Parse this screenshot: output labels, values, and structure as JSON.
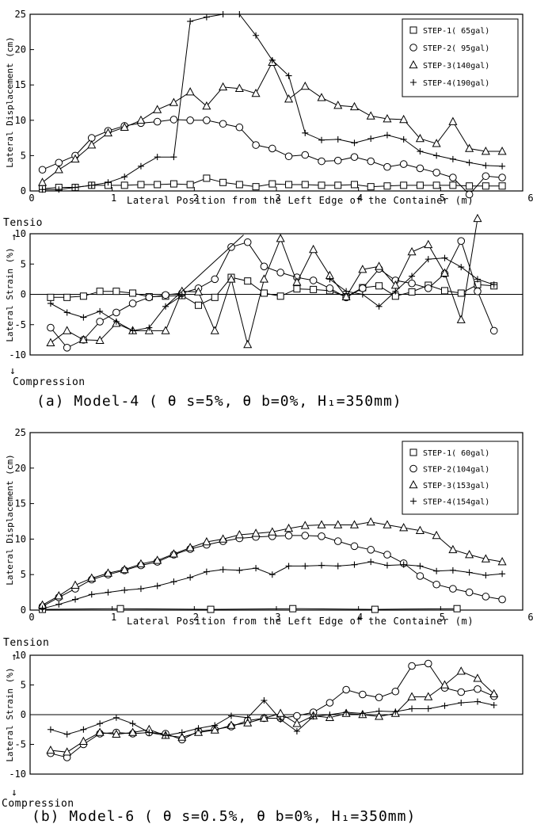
{
  "figure": {
    "caption_a": "(a) Model-4 ( θ s=5%, θ b=0%, H₁=350mm)",
    "caption_b": "(b) Model-6 ( θ s=0.5%, θ b=0%, H₁=350mm)",
    "tension_label_a": "Tensio",
    "compression_label_a": "Compression",
    "tension_label_b": "Tension",
    "compression_label_b": "Compression"
  },
  "chart_data": [
    {
      "id": "a-displacement",
      "type": "line",
      "xlabel": "Lateral Position from the Left Edge of the Container (m)",
      "ylabel": "Lateral Displacement (cm)",
      "xlim": [
        0,
        6
      ],
      "ylim": [
        0,
        25
      ],
      "xticks": [
        0,
        1,
        2,
        3,
        4,
        5,
        6
      ],
      "yticks": [
        0,
        5,
        10,
        15,
        20,
        25
      ],
      "legend_position": "top-right",
      "series": [
        {
          "name": "STEP-1( 65gal)",
          "marker": "square",
          "x": [
            0.15,
            0.35,
            0.55,
            0.75,
            0.95,
            1.15,
            1.35,
            1.55,
            1.75,
            1.95,
            2.15,
            2.35,
            2.55,
            2.75,
            2.95,
            3.15,
            3.35,
            3.55,
            3.75,
            3.95,
            4.15,
            4.35,
            4.55,
            4.75,
            4.95,
            5.15,
            5.35,
            5.55,
            5.75
          ],
          "y": [
            0.3,
            0.5,
            0.5,
            0.8,
            0.8,
            0.8,
            0.9,
            0.9,
            1.0,
            0.9,
            1.8,
            1.2,
            0.9,
            0.6,
            1.0,
            0.9,
            0.9,
            0.8,
            0.8,
            0.9,
            0.6,
            0.7,
            0.8,
            0.8,
            0.8,
            0.8,
            0.7,
            0.7,
            0.7
          ]
        },
        {
          "name": "STEP-2( 95gal)",
          "marker": "circle",
          "x": [
            0.15,
            0.35,
            0.55,
            0.75,
            0.95,
            1.15,
            1.35,
            1.55,
            1.75,
            1.95,
            2.15,
            2.35,
            2.55,
            2.75,
            2.95,
            3.15,
            3.35,
            3.55,
            3.75,
            3.95,
            4.15,
            4.35,
            4.55,
            4.75,
            4.95,
            5.15,
            5.35,
            5.55,
            5.75
          ],
          "y": [
            3.0,
            4.0,
            5.0,
            7.5,
            8.5,
            9.2,
            9.6,
            9.8,
            10.1,
            10.0,
            10.0,
            9.5,
            9.0,
            6.5,
            6.0,
            4.9,
            5.1,
            4.2,
            4.3,
            4.8,
            4.2,
            3.4,
            3.8,
            3.2,
            2.6,
            1.9,
            -0.5,
            2.1,
            1.9
          ]
        },
        {
          "name": "STEP-3(140gal)",
          "marker": "triangle",
          "x": [
            0.15,
            0.35,
            0.55,
            0.75,
            0.95,
            1.15,
            1.35,
            1.55,
            1.75,
            1.95,
            2.15,
            2.35,
            2.55,
            2.75,
            2.95,
            3.15,
            3.35,
            3.55,
            3.75,
            3.95,
            4.15,
            4.35,
            4.55,
            4.75,
            4.95,
            5.15,
            5.35,
            5.55,
            5.75
          ],
          "y": [
            1.2,
            3.0,
            4.5,
            6.5,
            8.2,
            9.0,
            10.0,
            11.5,
            12.5,
            14.0,
            12.0,
            14.7,
            14.5,
            13.8,
            18.2,
            13.0,
            14.8,
            13.2,
            12.1,
            11.9,
            10.6,
            10.2,
            10.1,
            7.4,
            6.7,
            9.8,
            6.0,
            5.6,
            5.6
          ]
        },
        {
          "name": "STEP-4(190gal)",
          "marker": "plus",
          "x": [
            0.15,
            0.35,
            0.55,
            0.75,
            0.95,
            1.15,
            1.35,
            1.55,
            1.75,
            1.95,
            2.15,
            2.35,
            2.55,
            2.75,
            2.95,
            3.15,
            3.35,
            3.55,
            3.75,
            3.95,
            4.15,
            4.35,
            4.55,
            4.75,
            4.95,
            5.15,
            5.35,
            5.55,
            5.75
          ],
          "y": [
            0.2,
            0.2,
            0.5,
            0.8,
            1.2,
            2.0,
            3.5,
            4.8,
            4.8,
            24.0,
            24.6,
            25.0,
            25.0,
            22.0,
            18.5,
            16.3,
            8.2,
            7.2,
            7.3,
            6.8,
            7.4,
            7.9,
            7.3,
            5.6,
            5.0,
            4.5,
            4.0,
            3.6,
            3.5
          ]
        }
      ]
    },
    {
      "id": "a-strain",
      "type": "line",
      "ylabel": "Lateral Strain (%)",
      "xlim": [
        0,
        6
      ],
      "ylim": [
        -10,
        10
      ],
      "yticks": [
        -10,
        -5,
        0,
        5,
        10
      ],
      "series": [
        {
          "name": "STEP-1( 65gal)",
          "marker": "square",
          "x": [
            0.25,
            0.45,
            0.65,
            0.85,
            1.05,
            1.25,
            1.45,
            1.65,
            1.85,
            2.05,
            2.25,
            2.45,
            2.65,
            2.85,
            3.05,
            3.25,
            3.45,
            3.65,
            3.85,
            4.05,
            4.25,
            4.45,
            4.65,
            4.85,
            5.05,
            5.25,
            5.45,
            5.65
          ],
          "y": [
            -0.5,
            -0.5,
            -0.3,
            0.5,
            0.5,
            0.2,
            -0.4,
            -0.3,
            -0.2,
            -1.8,
            -0.5,
            2.8,
            2.2,
            0.2,
            -0.3,
            0.9,
            0.8,
            0.6,
            -0.4,
            1.1,
            1.4,
            -0.3,
            0.4,
            1.5,
            0.6,
            0.2,
            1.6,
            1.4
          ]
        },
        {
          "name": "STEP-2( 95gal)",
          "marker": "circle",
          "x": [
            0.25,
            0.45,
            0.65,
            0.85,
            1.05,
            1.25,
            1.45,
            1.65,
            1.85,
            2.05,
            2.25,
            2.45,
            2.65,
            2.85,
            3.05,
            3.25,
            3.45,
            3.65,
            3.85,
            4.05,
            4.25,
            4.45,
            4.65,
            4.85,
            5.05,
            5.25,
            5.45,
            5.65
          ],
          "y": [
            -5.5,
            -8.8,
            -7.5,
            -4.5,
            -3.0,
            -1.5,
            -0.5,
            -0.1,
            0.2,
            1.0,
            2.5,
            7.8,
            8.6,
            4.6,
            3.6,
            2.8,
            2.3,
            1.0,
            -0.5,
            1.0,
            4.2,
            2.3,
            1.8,
            1.0,
            3.4,
            8.8,
            0.5,
            -6.0
          ]
        },
        {
          "name": "STEP-3(140gal)",
          "marker": "triangle",
          "x": [
            0.25,
            0.45,
            0.65,
            0.85,
            1.05,
            1.25,
            1.45,
            1.65,
            1.85,
            2.05,
            2.25,
            2.45,
            2.65,
            2.85,
            3.05,
            3.25,
            3.45,
            3.65,
            3.85,
            4.05,
            4.25,
            4.45,
            4.65,
            4.85,
            5.05,
            5.25,
            5.45,
            5.65
          ],
          "y": [
            -8.0,
            -6.0,
            -7.5,
            -7.6,
            -4.8,
            -6.0,
            -6.0,
            -6.0,
            0.5,
            0.4,
            -6.0,
            2.5,
            -8.3,
            2.5,
            9.2,
            2.0,
            7.4,
            3.1,
            -0.4,
            4.1,
            4.6,
            1.5,
            7.0,
            8.2,
            3.5,
            -4.2,
            12.5,
            null
          ]
        },
        {
          "name": "STEP-4(190gal)",
          "marker": "plus",
          "x": [
            0.25,
            0.45,
            0.65,
            0.85,
            1.05,
            1.25,
            1.45,
            1.65,
            1.85,
            2.05,
            2.25,
            2.45,
            2.65,
            2.85,
            3.05,
            3.25,
            3.45,
            3.65,
            3.85,
            4.05,
            4.25,
            4.45,
            4.65,
            4.85,
            5.05,
            5.25,
            5.45,
            5.65
          ],
          "y": [
            -1.5,
            -3.0,
            -3.8,
            -2.8,
            -4.5,
            -6.0,
            -5.5,
            -2.0,
            -0.2,
            null,
            null,
            null,
            null,
            null,
            null,
            null,
            null,
            2.5,
            0.5,
            0.0,
            -2.0,
            0.5,
            3.0,
            5.8,
            6.0,
            4.5,
            2.5,
            1.6
          ],
          "segments": [
            {
              "from": [
                1.65,
                -2.0
              ],
              "to": [
                2.6,
                9.8
              ]
            }
          ]
        }
      ]
    },
    {
      "id": "b-displacement",
      "type": "line",
      "xlabel": "Lateral Position from the Left Edge of the Container (m)",
      "ylabel": "Lateral Displacement (cm)",
      "xlim": [
        0,
        6
      ],
      "ylim": [
        0,
        25
      ],
      "xticks": [
        0,
        1,
        2,
        3,
        4,
        5,
        6
      ],
      "yticks": [
        0,
        5,
        10,
        15,
        20,
        25
      ],
      "legend_position": "top-right",
      "series": [
        {
          "name": "STEP-1( 60gal)",
          "marker": "square",
          "x": [
            0.15,
            1.1,
            2.2,
            3.2,
            4.2,
            5.2
          ],
          "y": [
            0.1,
            0.2,
            0.1,
            0.2,
            0.1,
            0.2
          ]
        },
        {
          "name": "STEP-2(104gal)",
          "marker": "circle",
          "x": [
            0.15,
            0.35,
            0.55,
            0.75,
            0.95,
            1.15,
            1.35,
            1.55,
            1.75,
            1.95,
            2.15,
            2.35,
            2.55,
            2.75,
            2.95,
            3.15,
            3.35,
            3.55,
            3.75,
            3.95,
            4.15,
            4.35,
            4.55,
            4.75,
            4.95,
            5.15,
            5.35,
            5.55,
            5.75
          ],
          "y": [
            0.5,
            1.8,
            3.0,
            4.3,
            5.0,
            5.6,
            6.3,
            6.8,
            7.8,
            8.6,
            9.2,
            9.7,
            10.1,
            10.3,
            10.4,
            10.5,
            10.5,
            10.4,
            9.7,
            9.0,
            8.5,
            7.8,
            6.6,
            4.8,
            3.6,
            3.0,
            2.5,
            1.9,
            1.5
          ]
        },
        {
          "name": "STEP-3(153gal)",
          "marker": "triangle",
          "x": [
            0.15,
            0.35,
            0.55,
            0.75,
            0.95,
            1.15,
            1.35,
            1.55,
            1.75,
            1.95,
            2.15,
            2.35,
            2.55,
            2.75,
            2.95,
            3.15,
            3.35,
            3.55,
            3.75,
            3.95,
            4.15,
            4.35,
            4.55,
            4.75,
            4.95,
            5.15,
            5.35,
            5.55,
            5.75
          ],
          "y": [
            0.7,
            2.0,
            3.5,
            4.5,
            5.2,
            5.7,
            6.5,
            7.0,
            7.9,
            8.8,
            9.6,
            10.0,
            10.6,
            10.8,
            11.0,
            11.5,
            11.9,
            12.0,
            12.0,
            12.0,
            12.4,
            12.0,
            11.6,
            11.2,
            10.5,
            8.5,
            7.8,
            7.2,
            6.8
          ]
        },
        {
          "name": "STEP-4(154gal)",
          "marker": "plus",
          "x": [
            0.15,
            0.35,
            0.55,
            0.75,
            0.95,
            1.15,
            1.35,
            1.55,
            1.75,
            1.95,
            2.15,
            2.35,
            2.55,
            2.75,
            2.95,
            3.15,
            3.35,
            3.55,
            3.75,
            3.95,
            4.15,
            4.35,
            4.55,
            4.75,
            4.95,
            5.15,
            5.35,
            5.55,
            5.75
          ],
          "y": [
            0.2,
            0.8,
            1.5,
            2.2,
            2.5,
            2.8,
            3.0,
            3.4,
            4.0,
            4.6,
            5.4,
            5.7,
            5.6,
            5.9,
            5.0,
            6.2,
            6.2,
            6.3,
            6.2,
            6.4,
            6.8,
            6.3,
            6.4,
            6.2,
            5.5,
            5.6,
            5.3,
            4.9,
            5.1
          ]
        }
      ]
    },
    {
      "id": "b-strain",
      "type": "line",
      "ylabel": "Lateral Strain (%)",
      "xlim": [
        0,
        6
      ],
      "ylim": [
        -10,
        10
      ],
      "yticks": [
        -10,
        -5,
        0,
        5,
        10
      ],
      "series": [
        {
          "name": "STEP-2(104gal)",
          "marker": "circle",
          "x": [
            0.25,
            0.45,
            0.65,
            0.85,
            1.05,
            1.25,
            1.45,
            1.65,
            1.85,
            2.05,
            2.25,
            2.45,
            2.65,
            2.85,
            3.05,
            3.25,
            3.45,
            3.65,
            3.85,
            4.05,
            4.25,
            4.45,
            4.65,
            4.85,
            5.05,
            5.25,
            5.45,
            5.65
          ],
          "y": [
            -6.5,
            -7.2,
            -5.0,
            -3.2,
            -3.0,
            -3.2,
            -3.0,
            -3.2,
            -4.2,
            -2.8,
            -2.5,
            -2.0,
            -1.0,
            -0.6,
            -0.6,
            -0.2,
            0.4,
            2.0,
            4.2,
            3.4,
            2.9,
            3.9,
            8.2,
            8.6,
            4.5,
            3.8,
            4.3,
            3.1
          ]
        },
        {
          "name": "STEP-3(153gal)",
          "marker": "triangle",
          "x": [
            0.25,
            0.45,
            0.65,
            0.85,
            1.05,
            1.25,
            1.45,
            1.65,
            1.85,
            2.05,
            2.25,
            2.45,
            2.65,
            2.85,
            3.05,
            3.25,
            3.45,
            3.65,
            3.85,
            4.05,
            4.25,
            4.45,
            4.65,
            4.85,
            5.05,
            5.25,
            5.45,
            5.65
          ],
          "y": [
            -6.0,
            -6.3,
            -4.5,
            -3.0,
            -3.3,
            -3.0,
            -2.5,
            -3.5,
            -3.8,
            -3.0,
            -2.6,
            -1.8,
            -1.4,
            -0.6,
            0.2,
            -1.5,
            -0.2,
            -0.5,
            0.2,
            0.0,
            -0.3,
            0.2,
            3.0,
            3.0,
            5.0,
            7.3,
            6.1,
            3.5
          ]
        },
        {
          "name": "STEP-4(154gal)",
          "marker": "plus",
          "x": [
            0.25,
            0.45,
            0.65,
            0.85,
            1.05,
            1.25,
            1.45,
            1.65,
            1.85,
            2.05,
            2.25,
            2.45,
            2.65,
            2.85,
            3.05,
            3.25,
            3.45,
            3.65,
            3.85,
            4.05,
            4.25,
            4.45,
            4.65,
            4.85,
            5.05,
            5.25,
            5.45,
            5.65
          ],
          "y": [
            -2.5,
            -3.3,
            -2.5,
            -1.5,
            -0.5,
            -1.5,
            -3.0,
            -3.5,
            -3.0,
            -2.3,
            -1.8,
            -0.2,
            -0.5,
            2.4,
            -0.8,
            -2.8,
            -0.3,
            0.0,
            0.4,
            0.2,
            0.6,
            0.5,
            1.0,
            1.0,
            1.5,
            2.0,
            2.2,
            1.6
          ]
        }
      ]
    }
  ]
}
